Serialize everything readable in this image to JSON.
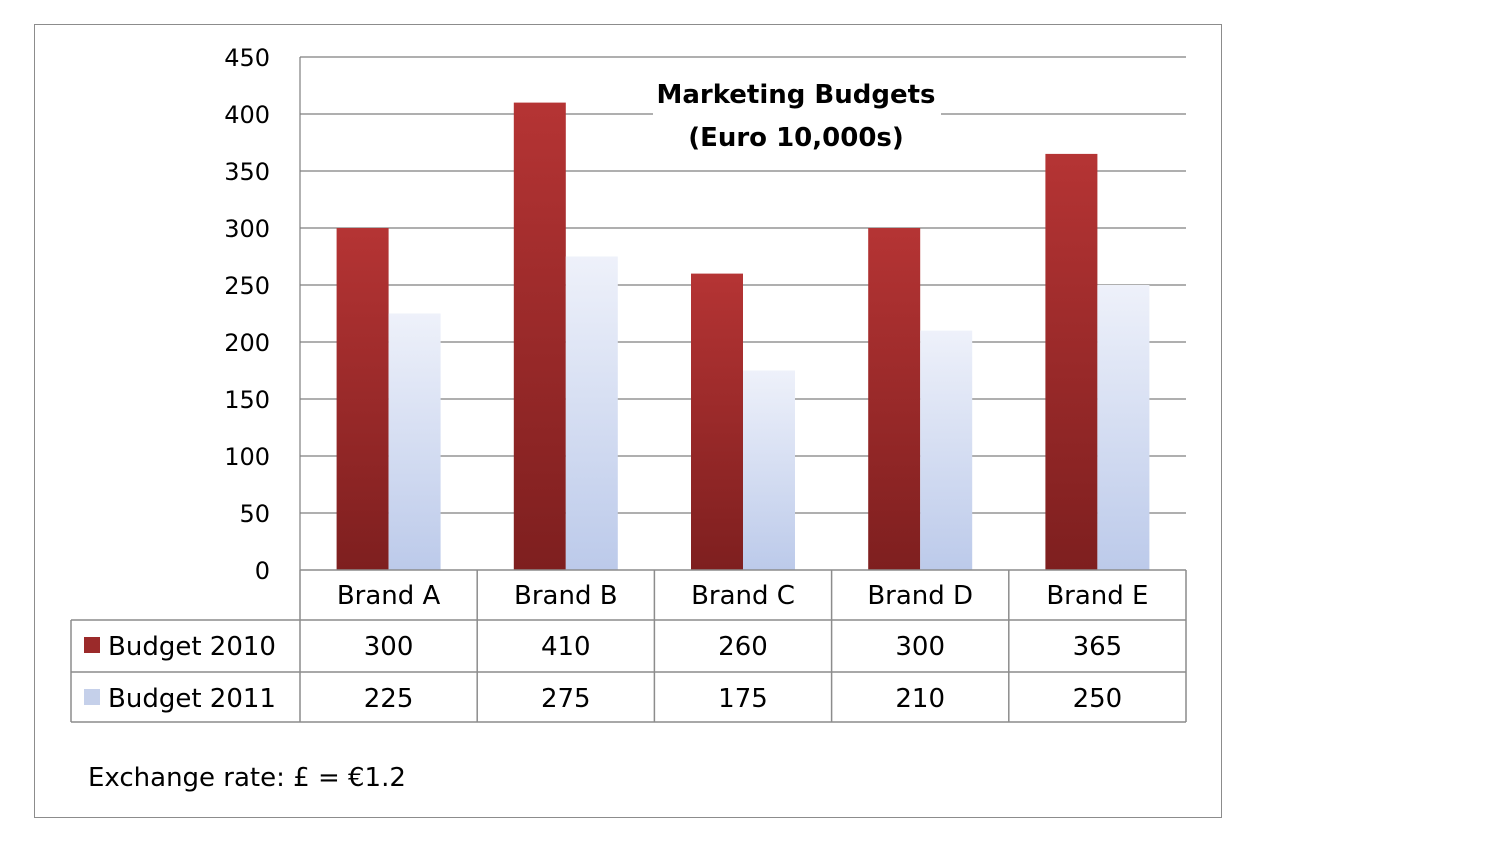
{
  "chart_data": {
    "type": "bar",
    "title": "Marketing Budgets",
    "subtitle": "(Euro 10,000s)",
    "categories": [
      "Brand A",
      "Brand B",
      "Brand C",
      "Brand D",
      "Brand E"
    ],
    "series": [
      {
        "name": "Budget 2010",
        "values": [
          300,
          410,
          260,
          300,
          365
        ],
        "color": "#a52a2a"
      },
      {
        "name": "Budget 2011",
        "values": [
          225,
          275,
          175,
          210,
          250
        ],
        "color": "#c5d0ea"
      }
    ],
    "ylim": [
      0,
      450
    ],
    "yticks": [
      0,
      50,
      100,
      150,
      200,
      250,
      300,
      350,
      400,
      450
    ],
    "grid": true,
    "legend": "data-table",
    "xlabel": "",
    "ylabel": ""
  },
  "footnote": "Exchange rate: £ = €1.2"
}
